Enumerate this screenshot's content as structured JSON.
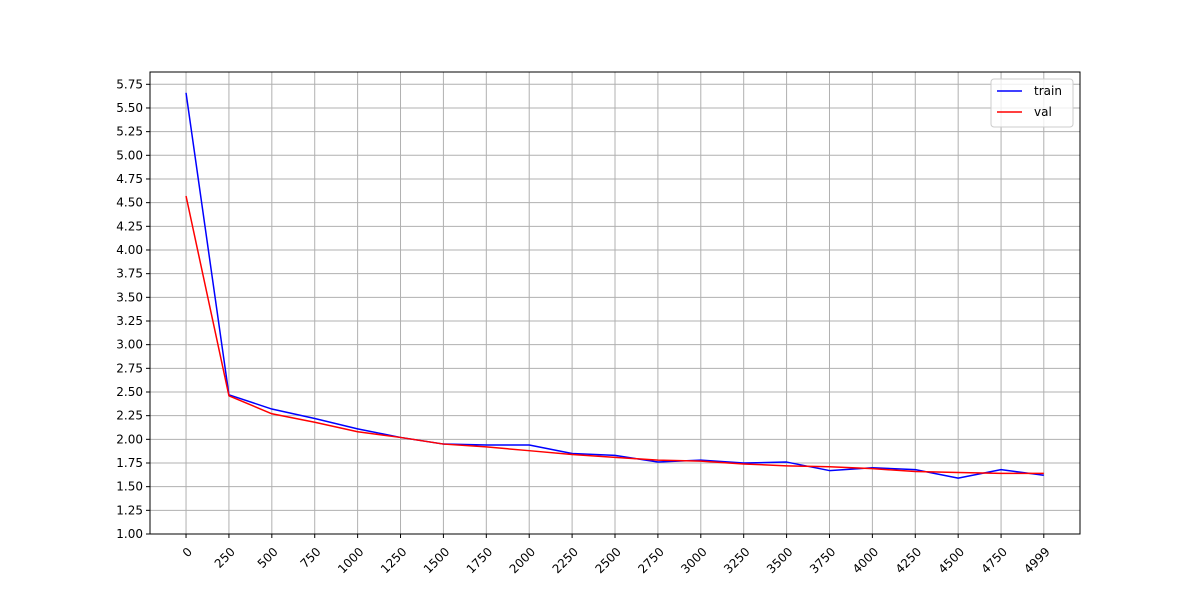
{
  "chart_data": {
    "type": "line",
    "title": "",
    "xlabel": "",
    "ylabel": "",
    "x": [
      0,
      250,
      500,
      750,
      1000,
      1250,
      1500,
      1750,
      2000,
      2250,
      2500,
      2750,
      3000,
      3250,
      3500,
      3750,
      4000,
      4250,
      4500,
      4750,
      4999
    ],
    "x_tick_labels": [
      "0",
      "250",
      "500",
      "750",
      "1000",
      "1250",
      "1500",
      "1750",
      "2000",
      "2250",
      "2500",
      "2750",
      "3000",
      "3250",
      "3500",
      "3750",
      "4000",
      "4250",
      "4500",
      "4750",
      "4999"
    ],
    "y_ticks": [
      1.0,
      1.25,
      1.5,
      1.75,
      2.0,
      2.25,
      2.5,
      2.75,
      3.0,
      3.25,
      3.5,
      3.75,
      4.0,
      4.25,
      4.5,
      4.75,
      5.0,
      5.25,
      5.5,
      5.75
    ],
    "y_tick_labels": [
      "1.00",
      "1.25",
      "1.50",
      "1.75",
      "2.00",
      "2.25",
      "2.50",
      "2.75",
      "3.00",
      "3.25",
      "3.50",
      "3.75",
      "4.00",
      "4.25",
      "4.50",
      "4.75",
      "5.00",
      "5.25",
      "5.50",
      "5.75"
    ],
    "ylim": [
      1.0,
      5.88
    ],
    "grid": true,
    "legend_position": "top-right",
    "series": [
      {
        "name": "train",
        "color": "#0000ff",
        "values": [
          5.66,
          2.47,
          2.32,
          2.22,
          2.11,
          2.02,
          1.95,
          1.94,
          1.94,
          1.85,
          1.83,
          1.76,
          1.78,
          1.75,
          1.76,
          1.67,
          1.7,
          1.68,
          1.59,
          1.68,
          1.62
        ]
      },
      {
        "name": "val",
        "color": "#ff0000",
        "values": [
          4.57,
          2.46,
          2.27,
          2.18,
          2.08,
          2.02,
          1.95,
          1.92,
          1.88,
          1.84,
          1.81,
          1.78,
          1.77,
          1.74,
          1.72,
          1.71,
          1.69,
          1.66,
          1.65,
          1.64,
          1.64
        ]
      }
    ]
  }
}
